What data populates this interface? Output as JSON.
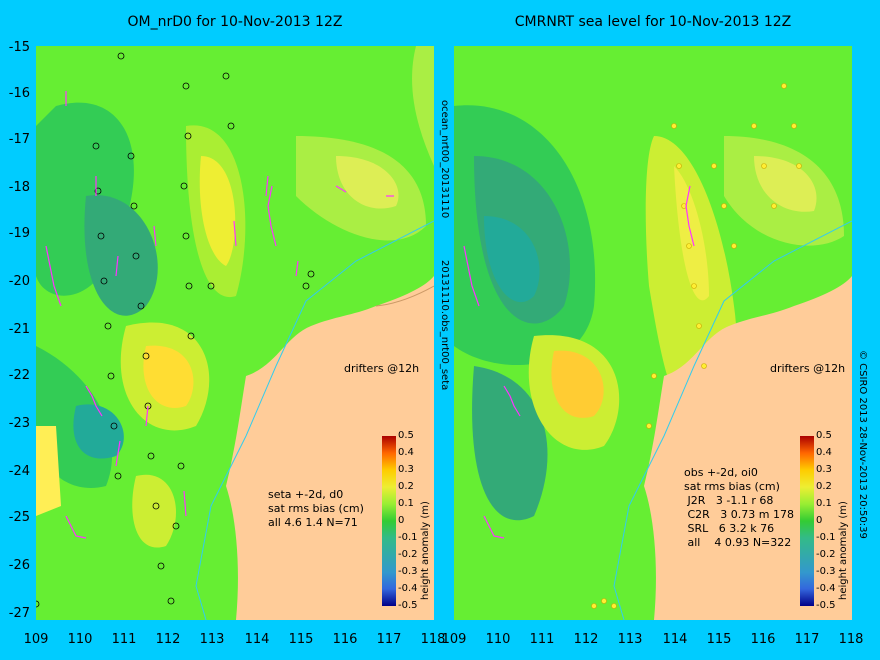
{
  "left_panel": {
    "title": "OM_nrD0 for 10-Nov-2013 12Z",
    "drifters_label": "drifters @12h",
    "stats": "seta +-2d, d0\nsat rms bias (cm)\nall 4.6 1.4 N=71",
    "colorbar_title": "height anomaly (m)"
  },
  "right_panel": {
    "title": "CMRNRT sea level  for 10-Nov-2013 12Z",
    "drifters_label": "drifters @12h",
    "stats": "obs +-2d, oi0\nsat rms bias (cm)\n J2R   3 -1.1 r 68\n C2R   3 0.73 m 178\n SRL   6 3.2 k 76\n all    4 0.93 N=322",
    "colorbar_title": "height anomaly (m)"
  },
  "side_labels": {
    "middle": "20131110.obs_nrt00_seta",
    "middle_top": "ocean_nrt00_20131110",
    "right": "© CSIRO 2013   28-Nov-2013 20:50:39"
  },
  "axes": {
    "y_ticks": [
      "-15",
      "-16",
      "-17",
      "-18",
      "-19",
      "-20",
      "-21",
      "-22",
      "-23",
      "-24",
      "-25",
      "-26",
      "-27"
    ],
    "x_ticks": [
      "109",
      "110",
      "111",
      "112",
      "113",
      "114",
      "115",
      "116",
      "117",
      "118"
    ],
    "x_ticks_right": [
      "109",
      "110",
      "111",
      "112",
      "113",
      "114",
      "115",
      "116",
      "117",
      "118"
    ]
  },
  "colorbar": {
    "ticks": [
      "0.5",
      "0.4",
      "0.3",
      "0.2",
      "0.1",
      "0",
      "-0.1",
      "-0.2",
      "-0.3",
      "-0.4",
      "-0.5"
    ]
  },
  "colors": {
    "background": "#00ccff",
    "land": "#ffcc99",
    "drifter": "#ff33ff"
  }
}
